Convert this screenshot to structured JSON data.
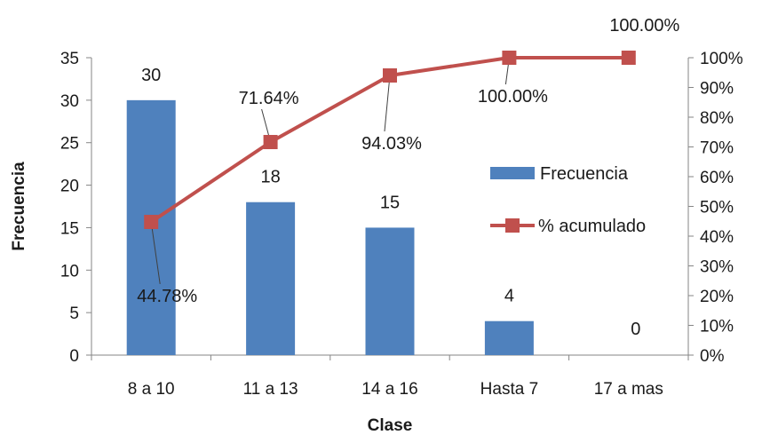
{
  "chart_data": {
    "type": "bar+line",
    "categories": [
      "8 a 10",
      "11 a 13",
      "14 a 16",
      "Hasta 7",
      "17 a mas"
    ],
    "series": [
      {
        "name": "Frecuencia",
        "type": "bar",
        "axis": "left",
        "values": [
          30,
          18,
          15,
          4,
          0
        ],
        "labels": [
          "30",
          "18",
          "15",
          "4",
          "0"
        ],
        "color": "#4f81bd"
      },
      {
        "name": "% acumulado",
        "type": "line",
        "axis": "right",
        "values": [
          44.78,
          71.64,
          94.03,
          100.0,
          100.0
        ],
        "labels": [
          "44.78%",
          "71.64%",
          "94.03%",
          "100.00%",
          "100.00%"
        ],
        "color": "#c0504d"
      }
    ],
    "xlabel": "Clase",
    "ylabel": "Frecuencia",
    "ylim": [
      0,
      35
    ],
    "y_ticks": [
      "0",
      "5",
      "10",
      "15",
      "20",
      "25",
      "30",
      "35"
    ],
    "y2lim": [
      0,
      100
    ],
    "y2_ticks": [
      "0%",
      "10%",
      "20%",
      "30%",
      "40%",
      "50%",
      "60%",
      "70%",
      "80%",
      "90%",
      "100%"
    ],
    "grid": false,
    "legend_position": "right"
  }
}
